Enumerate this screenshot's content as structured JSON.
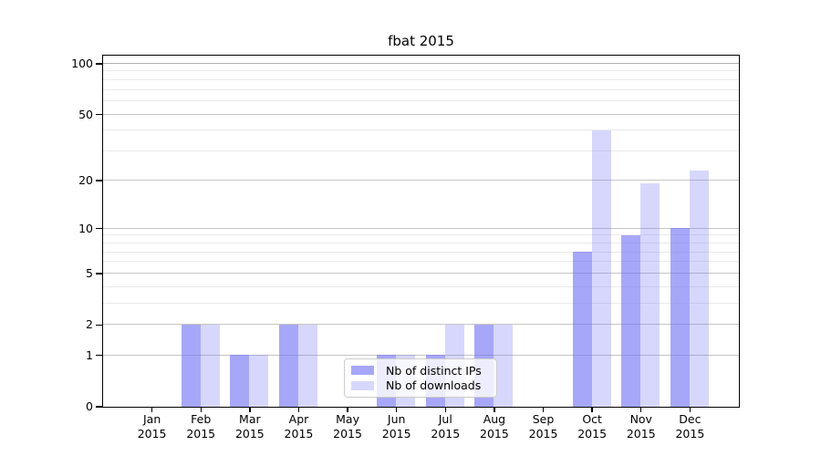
{
  "chart_data": {
    "type": "bar",
    "title": "fbat 2015",
    "categories": [
      "Jan",
      "Feb",
      "Mar",
      "Apr",
      "May",
      "Jun",
      "Jul",
      "Aug",
      "Sep",
      "Oct",
      "Nov",
      "Dec"
    ],
    "x_year": "2015",
    "series": [
      {
        "name": "Nb of distinct IPs",
        "color": "rgba(108,108,247,0.60)",
        "values": [
          0,
          2,
          1,
          2,
          0,
          1,
          1,
          2,
          0,
          7,
          9,
          10
        ]
      },
      {
        "name": "Nb of downloads",
        "color": "rgba(108,108,247,0.27)",
        "values": [
          0,
          2,
          1,
          2,
          0,
          1,
          2,
          2,
          0,
          40,
          19,
          23
        ]
      }
    ],
    "xlabel": "",
    "ylabel": "",
    "yscale": "log1p",
    "ylim": [
      0,
      111
    ],
    "major_yticks": [
      0,
      1,
      2,
      5,
      10,
      20,
      50,
      100
    ],
    "minor_yticks": [
      3,
      4,
      6,
      7,
      8,
      9,
      30,
      40,
      60,
      70,
      80,
      90
    ],
    "grid": {
      "major_color": "#c6c6c6",
      "minor_color": "#eaeaea",
      "top_line_color": "#b0b0b0"
    },
    "legend": {
      "position": "lower center",
      "entries": [
        "Nb of distinct IPs",
        "Nb of downloads"
      ]
    },
    "axis_color": "#000000",
    "background_color": "#ffffff"
  }
}
